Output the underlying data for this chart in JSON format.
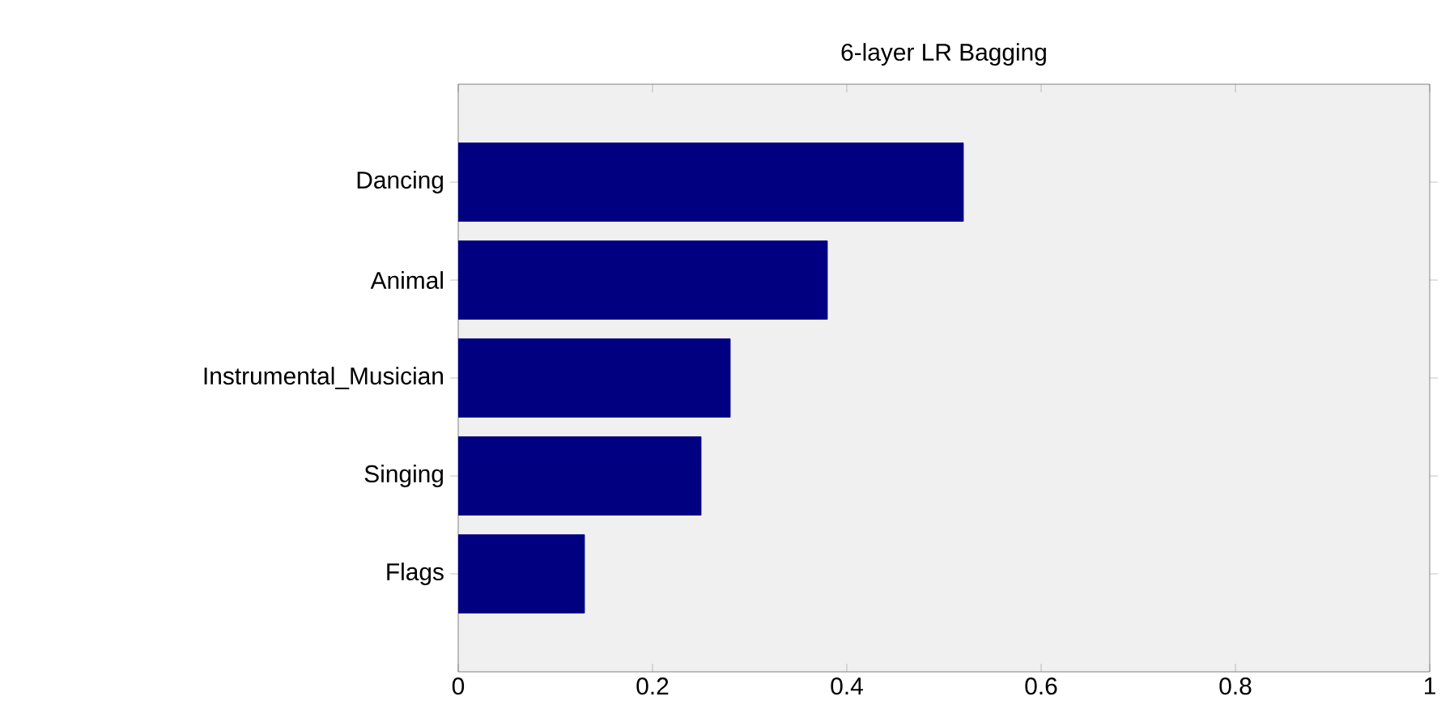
{
  "chart_data": {
    "type": "bar",
    "orientation": "horizontal",
    "title": "6-layer LR Bagging",
    "categories": [
      "Dancing",
      "Animal",
      "Instrumental_Musician",
      "Singing",
      "Flags"
    ],
    "values": [
      0.52,
      0.38,
      0.28,
      0.25,
      0.13
    ],
    "color": "#000080",
    "xlim": [
      0,
      1
    ],
    "xticks": [
      0,
      0.2,
      0.4,
      0.6,
      0.8,
      1
    ],
    "grid": false
  }
}
